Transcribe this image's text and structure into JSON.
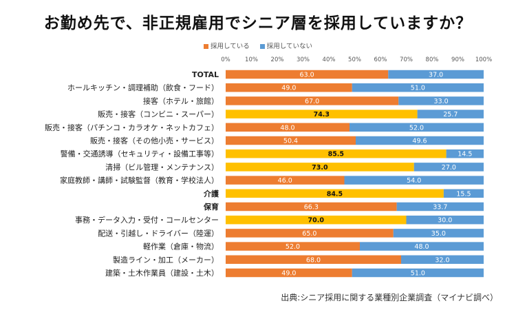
{
  "title": "お勤め先で、非正規雇用でシニア層を採用していますか？",
  "source": "出典:シニア採用に関する業種別企業調査（マイナビ調べ）",
  "chart_data": {
    "type": "bar",
    "orientation": "horizontal",
    "stacked": "100%",
    "title": "お勤め先で、非正規雇用でシニア層を採用していますか？",
    "xlim": [
      0,
      100
    ],
    "xticks": [
      "0%",
      "10%",
      "20%",
      "30%",
      "40%",
      "50%",
      "60%",
      "70%",
      "80%",
      "90%",
      "100%"
    ],
    "legend_position": "top-center",
    "colors": {
      "adopting": "#ED7D31",
      "adopting_highlight": "#FFC000",
      "not_adopting": "#5B9BD5"
    },
    "series": [
      {
        "name": "採用している",
        "values": [
          63.0,
          49.0,
          67.0,
          74.3,
          48.0,
          50.4,
          85.5,
          73.0,
          46.0,
          84.5,
          66.3,
          70.0,
          65.0,
          52.0,
          68.0,
          49.0
        ]
      },
      {
        "name": "採用していない",
        "values": [
          37.0,
          51.0,
          33.0,
          25.7,
          52.0,
          49.6,
          14.5,
          27.0,
          54.0,
          15.5,
          33.7,
          30.0,
          35.0,
          48.0,
          32.0,
          51.0
        ]
      }
    ],
    "adopting_labels": [
      "63.0",
      "49.0",
      "67.0",
      "74.3",
      "48.0",
      "50.4",
      "85.5",
      "73.0",
      "46.0",
      "84.5",
      "66.3",
      "70.0",
      "65.0",
      "52.0",
      "68.0",
      "49.0"
    ],
    "not_adopting_labels": [
      "37.0",
      "51.0",
      "33.0",
      "25.7",
      "52.0",
      "49.6",
      "14.5",
      "27.0",
      "54.0",
      "15.5",
      "33.7",
      "30.0",
      "35.0",
      "48.0",
      "32.0",
      "51.0"
    ],
    "highlighted": [
      false,
      false,
      false,
      true,
      false,
      false,
      true,
      true,
      false,
      true,
      false,
      true,
      false,
      false,
      false,
      false
    ],
    "bold_categories": [
      true,
      false,
      false,
      false,
      false,
      false,
      false,
      false,
      false,
      true,
      true,
      false,
      false,
      false,
      false,
      false
    ],
    "categories": [
      "TOTAL",
      "ホールキッチン・調理補助（飲食・フード）",
      "接客（ホテル・旅館）",
      "販売・接客（コンビニ・スーパー）",
      "販売・接客（パチンコ・カラオケ・ネットカフェ）",
      "販売・接客（その他小売・サービス）",
      "警備・交通誘導（セキュリティ・設備工事等）",
      "清掃（ビル管理・メンテナンス）",
      "家庭教師・講師・試験監督（教育・学校法人）",
      "介護",
      "保育",
      "事務・データ入力・受付・コールセンター",
      "配送・引越し・ドライバー（陸運）",
      "軽作業（倉庫・物流）",
      "製造ライン・加工（メーカー）",
      "建築・土木作業員（建設・土木）"
    ]
  }
}
